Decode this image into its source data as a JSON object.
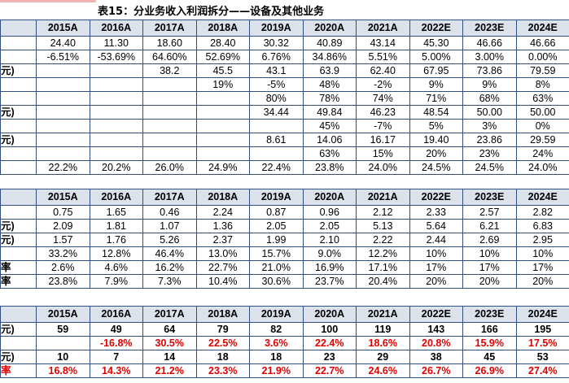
{
  "title": "表15：分业务收入利润拆分——设备及其他业务",
  "years": [
    "2015A",
    "2016A",
    "2017A",
    "2018A",
    "2019A",
    "2020A",
    "2021A",
    "2022E",
    "2023E",
    "2024E"
  ],
  "table1": [
    {
      "label": "",
      "cells": [
        "24.40",
        "11.30",
        "18.60",
        "28.40",
        "30.32",
        "40.89",
        "43.14",
        "45.30",
        "46.66",
        "46.66"
      ]
    },
    {
      "label": "",
      "cells": [
        "-6.51%",
        "-53.69%",
        "64.60%",
        "52.69%",
        "6.76%",
        "34.86%",
        "5.51%",
        "5.00%",
        "3.00%",
        "0.00%"
      ]
    },
    {
      "label": "元)",
      "cells": [
        "",
        "",
        "38.2",
        "45.5",
        "43.1",
        "63.9",
        "62.40",
        "67.95",
        "73.86",
        "79.59"
      ]
    },
    {
      "label": "",
      "cells": [
        "",
        "",
        "",
        "19%",
        "-5%",
        "48%",
        "-2%",
        "9%",
        "9%",
        "8%"
      ]
    },
    {
      "label": "",
      "cells": [
        "",
        "",
        "",
        "",
        "80%",
        "78%",
        "74%",
        "71%",
        "68%",
        "63%"
      ]
    },
    {
      "label": "元)",
      "cells": [
        "",
        "",
        "",
        "",
        "34.44",
        "49.84",
        "46.23",
        "48.54",
        "50.00",
        "50.00"
      ]
    },
    {
      "label": "",
      "cells": [
        "",
        "",
        "",
        "",
        "",
        "45%",
        "-7%",
        "5%",
        "3%",
        "0%"
      ]
    },
    {
      "label": "元)",
      "cells": [
        "",
        "",
        "",
        "",
        "8.61",
        "14.06",
        "16.17",
        "19.40",
        "23.86",
        "29.59"
      ]
    },
    {
      "label": "",
      "cells": [
        "",
        "",
        "",
        "",
        "",
        "63%",
        "15%",
        "20%",
        "23%",
        "24%"
      ]
    },
    {
      "label": "",
      "cells": [
        "22.2%",
        "20.2%",
        "26.0%",
        "24.9%",
        "22.4%",
        "23.8%",
        "24.0%",
        "24.5%",
        "24.5%",
        "24.0%"
      ]
    }
  ],
  "table2": [
    {
      "label": "",
      "cells": [
        "0.75",
        "1.65",
        "0.46",
        "2.24",
        "0.87",
        "0.96",
        "2.12",
        "2.33",
        "2.57",
        "2.82"
      ]
    },
    {
      "label": "元)",
      "cells": [
        "2.09",
        "1.81",
        "1.07",
        "1.36",
        "2.05",
        "2.05",
        "5.13",
        "5.64",
        "6.21",
        "6.83"
      ]
    },
    {
      "label": "元)",
      "cells": [
        "1.57",
        "1.76",
        "5.26",
        "2.37",
        "1.99",
        "2.10",
        "2.22",
        "2.44",
        "2.69",
        "2.95"
      ]
    },
    {
      "label": "",
      "cells": [
        "33.2%",
        "12.8%",
        "46.4%",
        "13.0%",
        "15.7%",
        "9.0%",
        "12.2%",
        "10%",
        "10%",
        "10%"
      ]
    },
    {
      "label": "率",
      "cells": [
        "2.6%",
        "4.6%",
        "16.2%",
        "22.7%",
        "21.0%",
        "16.9%",
        "17.1%",
        "17%",
        "17%",
        "17%"
      ]
    },
    {
      "label": "率",
      "cells": [
        "23.8%",
        "7.9%",
        "7.3%",
        "10.4%",
        "30.6%",
        "23.7%",
        "20.4%",
        "20%",
        "20%",
        "20%"
      ]
    }
  ],
  "table3": [
    {
      "label": "元)",
      "cells": [
        "59",
        "49",
        "64",
        "79",
        "82",
        "100",
        "119",
        "143",
        "166",
        "195"
      ]
    },
    {
      "label": "",
      "cells": [
        "",
        "-16.8%",
        "30.5%",
        "22.5%",
        "3.6%",
        "22.4%",
        "18.6%",
        "20.8%",
        "15.9%",
        "17.5%"
      ]
    },
    {
      "label": "元)",
      "cells": [
        "10",
        "7",
        "14",
        "18",
        "18",
        "23",
        "29",
        "38",
        "45",
        "53"
      ]
    },
    {
      "label": "率",
      "cells": [
        "16.8%",
        "14.3%",
        "21.2%",
        "23.3%",
        "21.9%",
        "22.7%",
        "24.6%",
        "26.7%",
        "26.9%",
        "27.4%"
      ]
    }
  ]
}
